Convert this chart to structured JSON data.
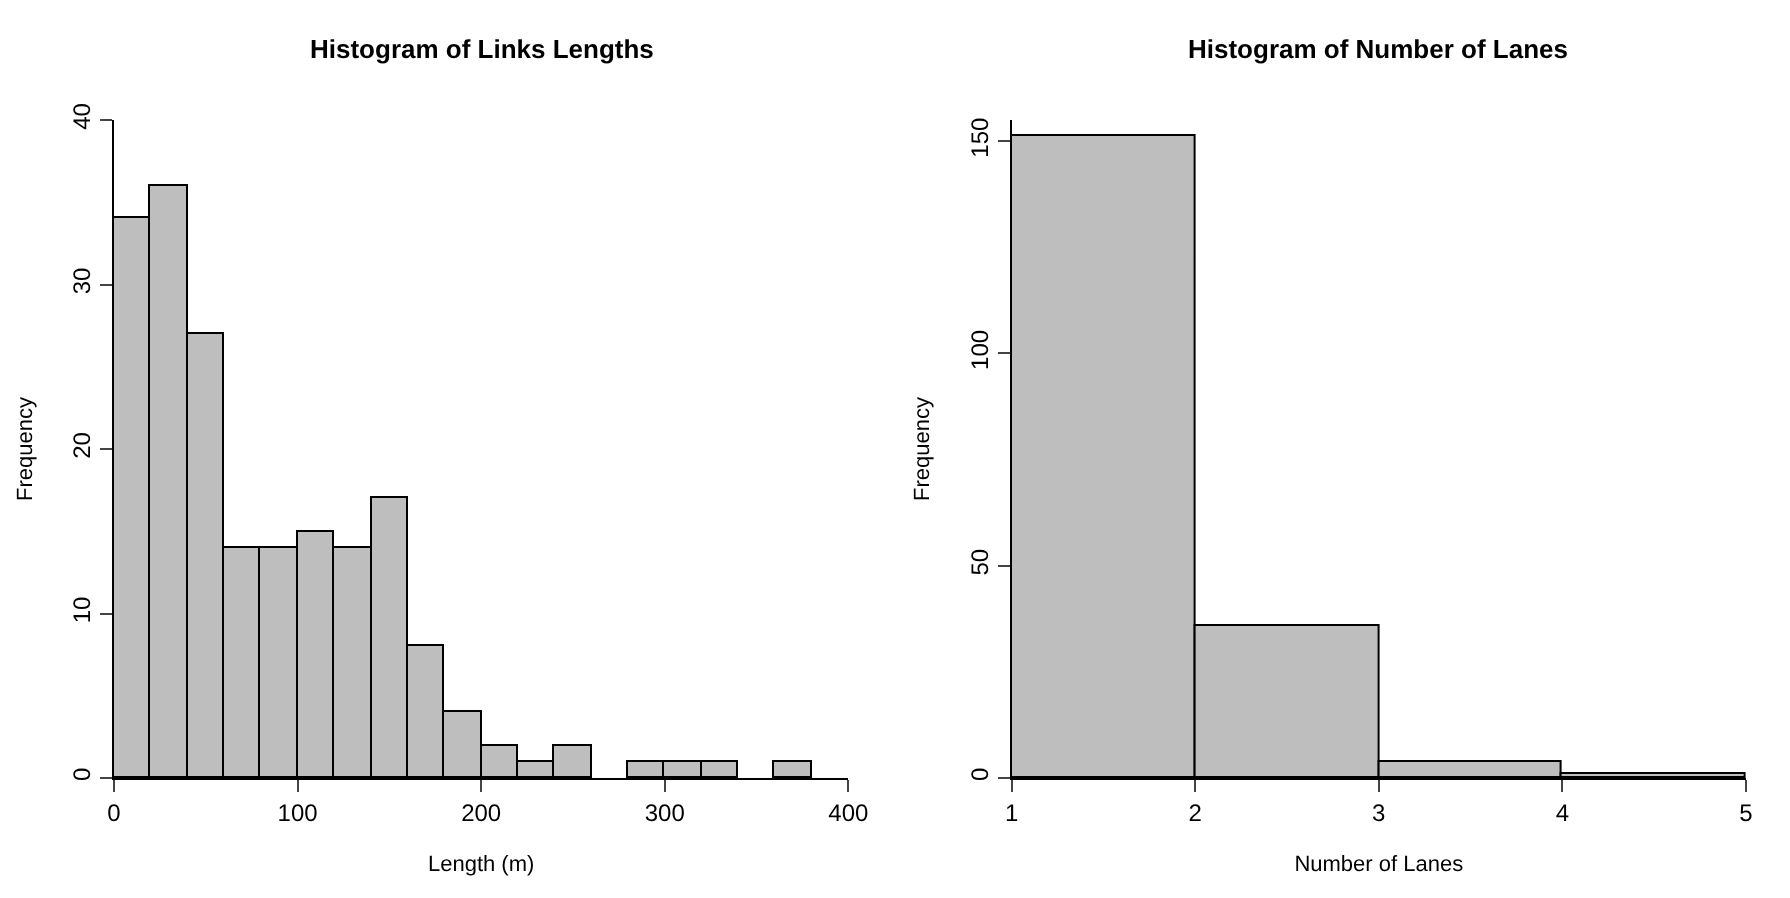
{
  "chart_data": [
    {
      "type": "histogram",
      "title": "Histogram of Links Lengths",
      "xlabel": "Length (m)",
      "ylabel": "Frequency",
      "color": "#bebebe",
      "bins": [
        0,
        20,
        40,
        60,
        80,
        100,
        120,
        140,
        160,
        180,
        200,
        220,
        240,
        260,
        280,
        300,
        320,
        340,
        360,
        380
      ],
      "values": [
        34,
        36,
        27,
        14,
        14,
        15,
        14,
        17,
        8,
        4,
        2,
        1,
        2,
        0,
        1,
        1,
        1,
        0,
        1
      ],
      "xlim": [
        0,
        400
      ],
      "xticks": [
        0,
        100,
        200,
        300,
        400
      ],
      "ylim": [
        0,
        40
      ],
      "yticks": [
        0,
        10,
        20,
        30,
        40
      ]
    },
    {
      "type": "histogram",
      "title": "Histogram of Number of Lanes",
      "xlabel": "Number of Lanes",
      "ylabel": "Frequency",
      "color": "#bebebe",
      "bins": [
        1,
        2,
        3,
        4,
        5
      ],
      "values": [
        151,
        36,
        4,
        1
      ],
      "xlim": [
        1,
        5
      ],
      "xticks": [
        1,
        2,
        3,
        4,
        5
      ],
      "ylim": [
        0,
        155
      ],
      "yticks": [
        0,
        50,
        100,
        150
      ]
    }
  ]
}
